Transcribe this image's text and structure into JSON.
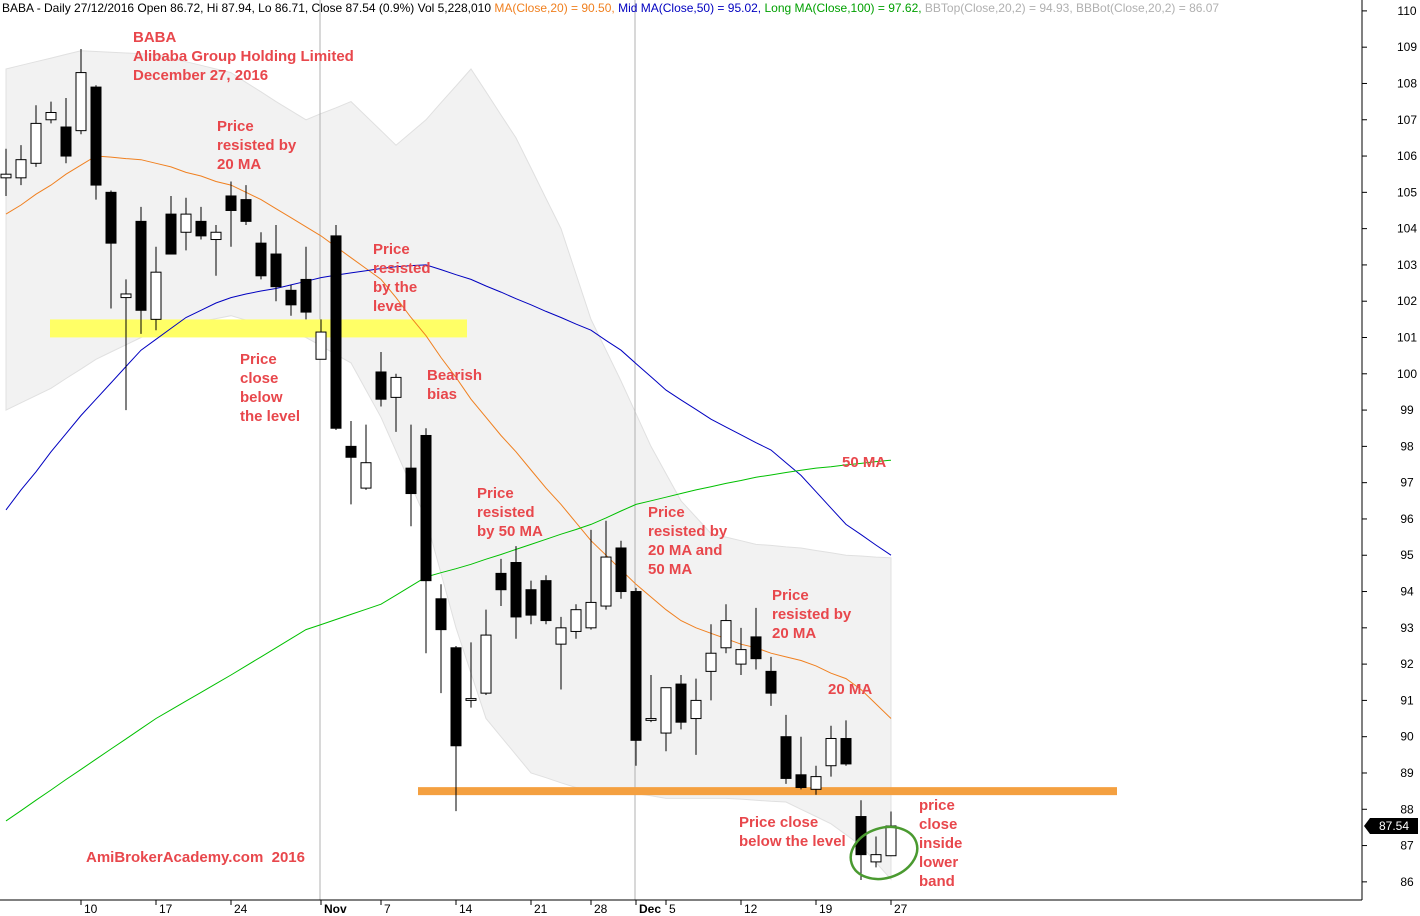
{
  "chart_data": {
    "type": "candlestick",
    "header": [
      {
        "text": "BABA - Daily 27/12/2016 Open 86.72, Hi 87.94, Lo 86.71, Close 87.54 (0.9%) Vol 5,228,010 ",
        "color": "#000000"
      },
      {
        "text": "MA(Close,20) = 90.50, ",
        "color": "#f08020"
      },
      {
        "text": "Mid MA(Close,50) = 95.02, ",
        "color": "#0000c0"
      },
      {
        "text": "Long MA(Close,100) = 97.62, ",
        "color": "#00a000"
      },
      {
        "text": "BBTop(Close,20,2) = 94.93, ",
        "color": "#b0b0b0"
      },
      {
        "text": "BBBot(Close,20,2) = 86.07",
        "color": "#b0b0b0"
      }
    ],
    "categories": [
      null,
      null,
      null,
      null,
      null,
      "10",
      null,
      null,
      null,
      null,
      "17",
      null,
      null,
      null,
      null,
      "24",
      null,
      null,
      null,
      null,
      null,
      "Nov",
      null,
      null,
      null,
      "7",
      null,
      null,
      null,
      null,
      "14",
      null,
      null,
      null,
      null,
      "21",
      null,
      null,
      null,
      "28",
      null,
      null,
      "Dec",
      null,
      "5",
      null,
      null,
      null,
      null,
      "12",
      null,
      null,
      null,
      null,
      "19",
      null,
      null,
      null,
      null,
      "27"
    ],
    "open": [
      105.4,
      105.4,
      105.8,
      107.0,
      106.8,
      106.7,
      107.9,
      105.0,
      102.1,
      104.2,
      101.5,
      104.4,
      103.9,
      104.2,
      103.7,
      104.9,
      104.8,
      103.6,
      103.3,
      102.3,
      102.6,
      100.4,
      103.8,
      98.0,
      96.85,
      100.05,
      99.35,
      97.4,
      98.3,
      93.8,
      92.45,
      91.0,
      91.2,
      94.5,
      94.8,
      94.05,
      94.3,
      92.55,
      92.9,
      93.0,
      93.6,
      95.2,
      94.0,
      90.45,
      90.1,
      91.45,
      90.5,
      91.8,
      92.45,
      92.0,
      92.75,
      91.8,
      90.0,
      88.95,
      88.55,
      89.2,
      89.95,
      87.8,
      86.55,
      86.72
    ],
    "high": [
      106.2,
      106.3,
      107.4,
      107.5,
      107.6,
      108.95,
      107.95,
      105.05,
      102.6,
      104.6,
      103.5,
      104.9,
      104.85,
      104.6,
      104.1,
      105.3,
      105.2,
      103.9,
      104.1,
      102.45,
      103.5,
      101.5,
      104.1,
      98.7,
      98.6,
      100.6,
      100.0,
      98.6,
      98.5,
      94.2,
      92.5,
      92.6,
      93.5,
      94.9,
      95.25,
      94.3,
      94.45,
      93.3,
      93.65,
      95.7,
      95.95,
      95.4,
      94.1,
      91.7,
      91.35,
      91.7,
      91.6,
      93.1,
      93.65,
      93.0,
      93.55,
      92.2,
      90.6,
      90.0,
      89.2,
      90.3,
      90.45,
      88.25,
      87.25,
      87.94
    ],
    "low": [
      104.9,
      105.2,
      105.7,
      106.9,
      105.8,
      106.6,
      104.8,
      101.8,
      99.0,
      101.1,
      101.2,
      103.3,
      103.4,
      103.7,
      102.7,
      103.5,
      104.1,
      102.6,
      102.0,
      101.6,
      101.5,
      100.4,
      98.45,
      96.4,
      96.8,
      99.1,
      98.4,
      95.8,
      92.3,
      91.2,
      87.95,
      90.8,
      91.15,
      93.6,
      92.7,
      93.1,
      93.1,
      91.3,
      92.7,
      92.95,
      93.5,
      93.8,
      89.2,
      90.4,
      89.6,
      90.2,
      89.5,
      91.0,
      92.3,
      91.7,
      91.85,
      90.85,
      88.7,
      88.55,
      88.4,
      88.9,
      89.2,
      86.05,
      86.4,
      86.71
    ],
    "close": [
      105.5,
      105.9,
      106.9,
      107.2,
      106.0,
      108.3,
      105.2,
      103.6,
      102.2,
      101.75,
      102.8,
      103.3,
      104.4,
      103.8,
      103.9,
      104.5,
      104.2,
      102.7,
      102.4,
      101.9,
      101.7,
      101.15,
      98.5,
      97.7,
      97.55,
      99.3,
      99.9,
      96.7,
      94.3,
      92.95,
      89.75,
      91.05,
      92.8,
      94.05,
      93.3,
      93.35,
      93.2,
      93.0,
      93.5,
      93.7,
      94.95,
      94.0,
      89.9,
      90.5,
      91.35,
      90.4,
      91.0,
      92.3,
      93.2,
      92.4,
      92.15,
      91.2,
      88.85,
      88.6,
      88.9,
      89.95,
      89.25,
      86.75,
      86.75,
      87.54
    ],
    "last_price_label": "87.54",
    "lines": [
      {
        "color": "#f08020",
        "values": [
          104.4,
          104.65,
          104.95,
          105.2,
          105.5,
          105.75,
          106.0,
          105.97,
          105.93,
          105.9,
          105.8,
          105.7,
          105.55,
          105.45,
          105.3,
          105.2,
          105.0,
          104.8,
          104.55,
          104.3,
          104.05,
          103.8,
          103.5,
          103.2,
          102.9,
          102.6,
          102.1,
          101.55,
          101.05,
          100.45,
          99.9,
          99.3,
          98.8,
          98.3,
          97.85,
          97.35,
          96.85,
          96.4,
          95.9,
          95.4,
          95.0,
          94.6,
          94.2,
          93.85,
          93.5,
          93.2,
          93.0,
          92.85,
          92.7,
          92.55,
          92.45,
          92.3,
          92.2,
          92.1,
          91.95,
          91.75,
          91.6,
          91.3,
          90.9,
          90.5
        ]
      },
      {
        "color": "#0000c0",
        "values": [
          96.25,
          96.8,
          97.3,
          97.85,
          98.35,
          98.85,
          99.3,
          99.75,
          100.2,
          100.65,
          100.95,
          101.25,
          101.55,
          101.75,
          101.95,
          102.1,
          102.2,
          102.28,
          102.35,
          102.45,
          102.55,
          102.65,
          102.72,
          102.78,
          102.84,
          102.9,
          102.95,
          102.98,
          103.0,
          102.87,
          102.73,
          102.6,
          102.42,
          102.25,
          102.07,
          101.9,
          101.72,
          101.55,
          101.37,
          101.2,
          100.92,
          100.65,
          100.28,
          99.92,
          99.55,
          99.28,
          99.02,
          98.75,
          98.53,
          98.32,
          98.1,
          97.9,
          97.55,
          97.2,
          96.75,
          96.3,
          95.85,
          95.57,
          95.28,
          95.0
        ]
      },
      {
        "color": "#00c000",
        "values": [
          87.68,
          87.96,
          88.25,
          88.53,
          88.82,
          89.1,
          89.38,
          89.66,
          89.94,
          90.22,
          90.5,
          90.74,
          90.98,
          91.22,
          91.46,
          91.7,
          91.95,
          92.2,
          92.45,
          92.7,
          92.95,
          93.09,
          93.23,
          93.37,
          93.51,
          93.65,
          93.9,
          94.15,
          94.4,
          94.52,
          94.63,
          94.75,
          94.89,
          95.02,
          95.16,
          95.3,
          95.44,
          95.58,
          95.71,
          95.85,
          96.03,
          96.22,
          96.4,
          96.5,
          96.6,
          96.7,
          96.8,
          96.89,
          96.98,
          97.06,
          97.15,
          97.21,
          97.28,
          97.34,
          97.4,
          97.44,
          97.49,
          97.53,
          97.58,
          97.62
        ]
      }
    ],
    "band": {
      "color": "#f2f2f2",
      "top": [
        108.4,
        108.5,
        108.6,
        108.7,
        108.8,
        108.9,
        108.88,
        108.86,
        108.84,
        108.82,
        108.8,
        108.7,
        108.6,
        108.5,
        108.4,
        108.3,
        108.03,
        107.77,
        107.5,
        107.25,
        107.0,
        107.17,
        107.33,
        107.5,
        107.1,
        106.7,
        106.3,
        106.65,
        107.0,
        107.47,
        107.93,
        108.4,
        107.77,
        107.13,
        106.5,
        105.67,
        104.83,
        104.0,
        102.75,
        101.5,
        100.65,
        99.8,
        98.9,
        98.0,
        97.25,
        96.5,
        96.05,
        95.6,
        95.5,
        95.4,
        95.3,
        95.27,
        95.23,
        95.2,
        95.13,
        95.07,
        95.0,
        94.98,
        94.95,
        94.93
      ],
      "bottom": [
        99.0,
        99.2,
        99.4,
        99.6,
        99.87,
        100.13,
        100.4,
        100.6,
        100.8,
        101.0,
        101.2,
        101.28,
        101.36,
        101.44,
        101.52,
        101.6,
        101.48,
        101.36,
        101.24,
        101.12,
        101.0,
        100.77,
        100.53,
        100.3,
        99.55,
        98.8,
        97.87,
        96.93,
        96.0,
        94.5,
        93.0,
        91.75,
        90.5,
        90.0,
        89.5,
        89.0,
        88.87,
        88.73,
        88.6,
        88.57,
        88.53,
        88.5,
        88.43,
        88.37,
        88.3,
        88.3,
        88.3,
        88.3,
        88.3,
        88.28,
        88.25,
        88.22,
        88.2,
        88.0,
        87.8,
        87.6,
        87.3,
        87.0,
        86.53,
        86.07
      ]
    },
    "levels": [
      {
        "value": 101.25,
        "color": "#ffff66"
      },
      {
        "value": 88.5,
        "color": "#f4a040"
      }
    ],
    "annotations": [
      {
        "lines": [
          "BABA",
          "Alibaba Group Holding Limited",
          "December 27, 2016"
        ],
        "color": "#e8474c"
      },
      {
        "lines": [
          "Price",
          "resisted by",
          "20 MA"
        ],
        "color": "#e8474c"
      },
      {
        "lines": [
          "Price",
          "resisted",
          "by the",
          "level"
        ],
        "color": "#e8474c"
      },
      {
        "lines": [
          "Price",
          "close",
          "below",
          "the level"
        ],
        "color": "#e8474c"
      },
      {
        "lines": [
          "Bearish",
          "bias"
        ],
        "color": "#e8474c"
      },
      {
        "lines": [
          "Price",
          "resisted",
          "by 50 MA"
        ],
        "color": "#e8474c"
      },
      {
        "lines": [
          "Price",
          "resisted by",
          "20 MA and",
          "50 MA"
        ],
        "color": "#e8474c"
      },
      {
        "lines": [
          "Price",
          "resisted by",
          "20 MA"
        ],
        "color": "#e8474c"
      },
      {
        "lines": [
          "50 MA"
        ],
        "color": "#e8474c"
      },
      {
        "lines": [
          "20 MA"
        ],
        "color": "#e8474c"
      },
      {
        "lines": [
          "Price close",
          "below the level"
        ],
        "color": "#e8474c"
      },
      {
        "lines": [
          "price",
          "close",
          "inside",
          "lower",
          "band"
        ],
        "color": "#e8474c"
      },
      {
        "lines": [
          "AmiBrokerAcademy.com  2016"
        ],
        "color": "#e8474c"
      }
    ],
    "ylim": [
      85.5,
      110.3
    ],
    "yticks": [
      86,
      87,
      88,
      89,
      90,
      91,
      92,
      93,
      94,
      95,
      96,
      97,
      98,
      99,
      100,
      101,
      102,
      103,
      104,
      105,
      106,
      107,
      108,
      109,
      110
    ]
  }
}
